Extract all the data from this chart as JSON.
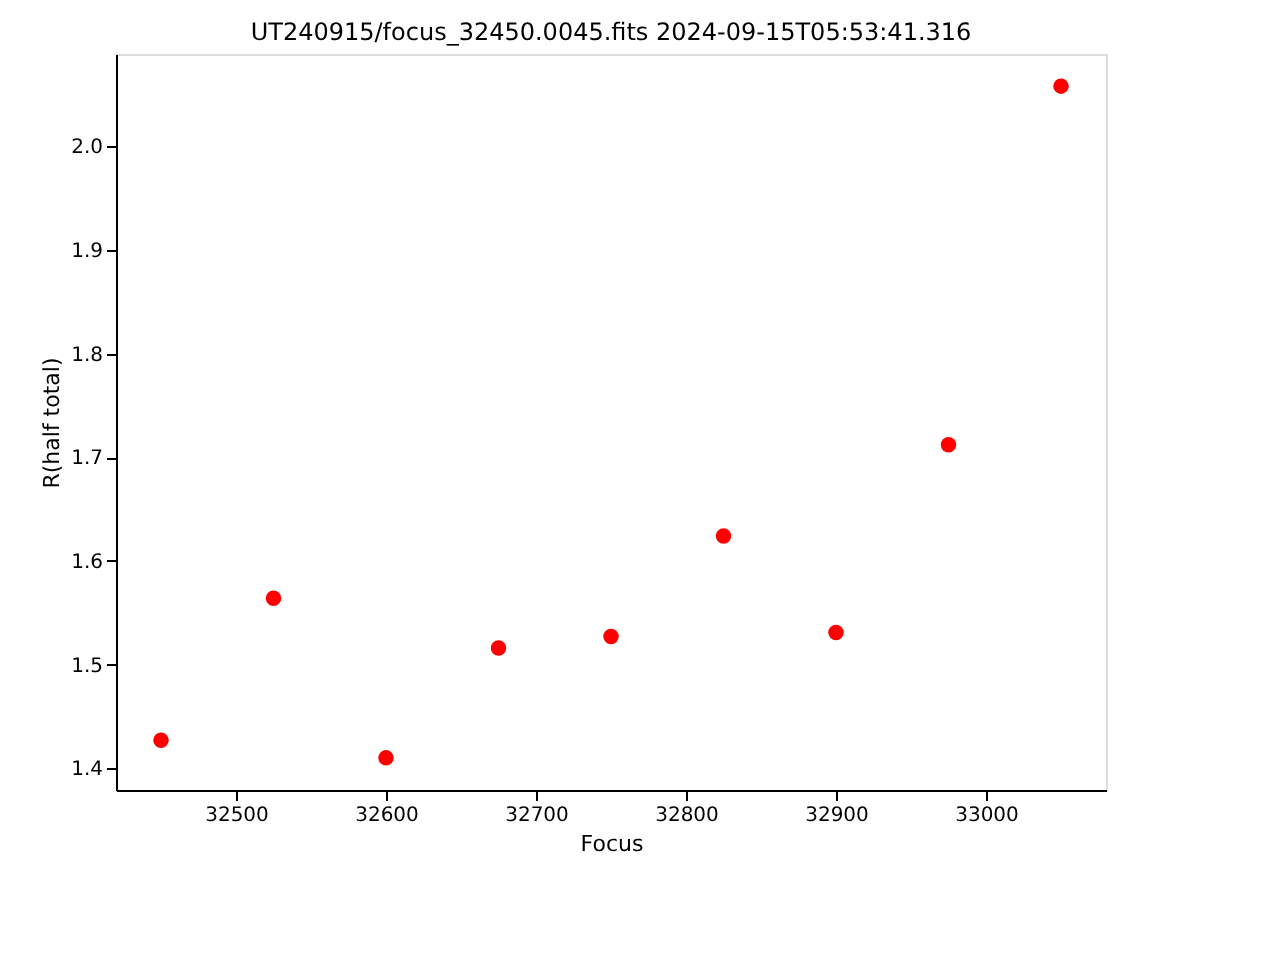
{
  "chart_data": {
    "type": "scatter",
    "title": "UT240915/focus_32450.0045.fits 2024-09-15T05:53:41.316",
    "xlabel": "Focus",
    "ylabel": "R(half total)",
    "x": [
      32450,
      32525,
      32600,
      32675,
      32750,
      32825,
      32900,
      32975,
      33050
    ],
    "series": [
      {
        "color": "#ff0000",
        "values": [
          1.427,
          1.564,
          1.41,
          1.516,
          1.527,
          1.624,
          1.531,
          1.712,
          2.058
        ]
      }
    ],
    "xlim": [
      32420,
      33080
    ],
    "ylim": [
      1.379,
      2.089
    ],
    "xticks": [
      32500,
      32600,
      32700,
      32800,
      32900,
      33000
    ],
    "yticks": [
      1.4,
      1.5,
      1.6,
      1.7,
      1.8,
      1.9,
      {
        "value": 2.0,
        "label": "2.0"
      }
    ],
    "marker": "circle",
    "grid": false,
    "legend": false
  }
}
